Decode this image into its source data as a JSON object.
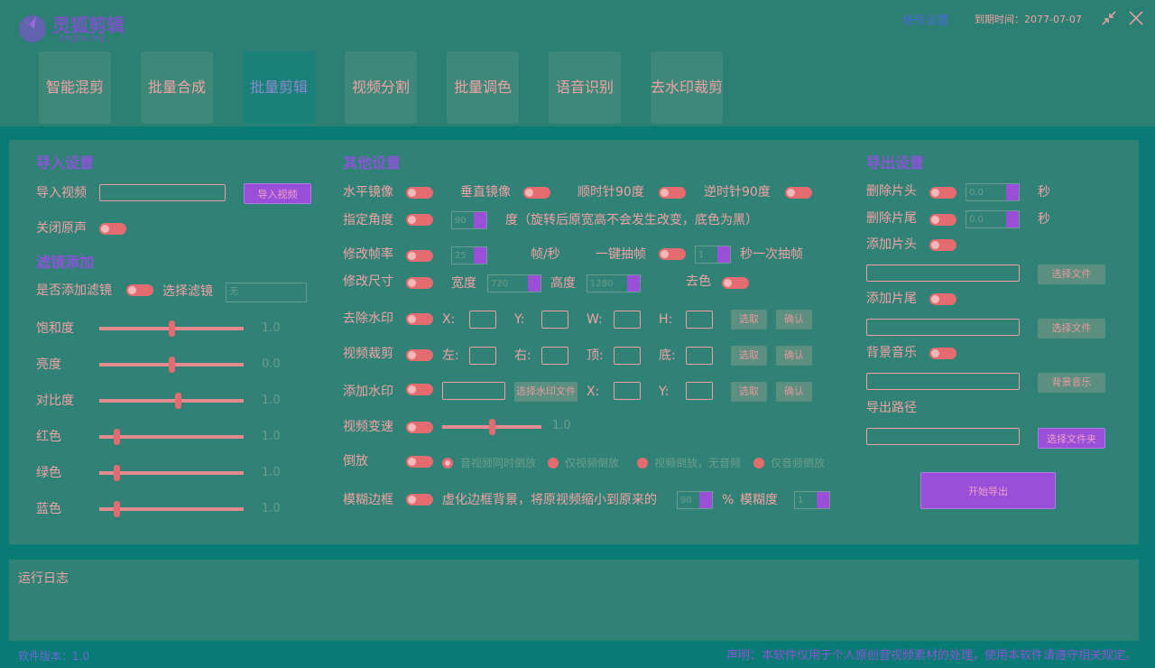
{
  "header": {
    "logo_title": "灵狐剪辑",
    "logo_subtitle": "linghu.org",
    "account": "帐号设置",
    "expiry": "到期时间：2077-07-07"
  },
  "tabs": [
    "智能混剪",
    "批量合成",
    "批量剪辑",
    "视频分割",
    "批量调色",
    "语音识别",
    "去水印裁剪"
  ],
  "import": {
    "title": "导入设置",
    "video_label": "导入视频",
    "video_button": "导入视频",
    "mute_label": "关闭原声"
  },
  "filter": {
    "title": "滤镜添加",
    "enable_label": "是否添加滤镜",
    "select_label": "选择滤镜",
    "select_value": "无",
    "sliders": [
      {
        "label": "饱和度",
        "value": "1.0"
      },
      {
        "label": "亮度",
        "value": "0.0"
      },
      {
        "label": "对比度",
        "value": "1.0"
      },
      {
        "label": "红色",
        "value": "1.0"
      },
      {
        "label": "绿色",
        "value": "1.0"
      },
      {
        "label": "蓝色",
        "value": "1.0"
      }
    ]
  },
  "other": {
    "title": "其他设置",
    "mirror_h": "水平镜像",
    "mirror_v": "垂直镜像",
    "rotate_cw": "顺时针90度",
    "rotate_ccw": "逆时针90度",
    "angle_label": "指定角度",
    "angle_value": "90",
    "angle_note": "度（旋转后原宽高不会发生改变，底色为黑）",
    "fps_label": "修改帧率",
    "fps_value": "25",
    "fps_unit": "帧/秒",
    "extract_label": "一键抽帧",
    "extract_value": "1",
    "extract_unit": "秒一次抽帧",
    "size_label": "修改尺寸",
    "width_label": "宽度",
    "width_value": "720",
    "height_label": "高度",
    "height_value": "1280",
    "gray_label": "去色",
    "dewatermark_label": "去除水印",
    "x": "X:",
    "y": "Y:",
    "w": "W:",
    "h": "H:",
    "pick": "选取",
    "confirm": "确认",
    "crop_label": "视频裁剪",
    "left": "左:",
    "right": "右:",
    "top": "顶:",
    "bottom": "底:",
    "watermark_label": "添加水印",
    "watermark_button": "选择水印文件",
    "speed_label": "视频变速",
    "speed_value": "1.0",
    "reverse_label": "倒放",
    "reverse_options": [
      "音视频同时倒放",
      "仅视频倒放",
      "视频倒放，无音频",
      "仅音频倒放"
    ],
    "blur_label": "模糊边框",
    "blur_note": "虚化边框背景，将原视频缩小到原来的",
    "blur_scale": "90",
    "percent": "%",
    "blur_degree_label": "模糊度",
    "blur_degree": "1"
  },
  "export": {
    "title": "导出设置",
    "cut_head": "删除片头",
    "cut_head_value": "0.0",
    "cut_tail": "删除片尾",
    "cut_tail_value": "0.0",
    "seconds": "秒",
    "add_head": "添加片头",
    "add_tail": "添加片尾",
    "choose_file": "选择文件",
    "bgm_label": "背景音乐",
    "bgm_button": "背景音乐",
    "path_label": "导出路径",
    "folder_button": "选择文件夹",
    "start_button": "开始导出"
  },
  "log": {
    "title": "运行日志"
  },
  "footer": {
    "version": "软件版本：1.0",
    "notice": "声明：本软件仅用于个人原创音视频素材的处理，使用本软件请遵守相关规定。"
  }
}
